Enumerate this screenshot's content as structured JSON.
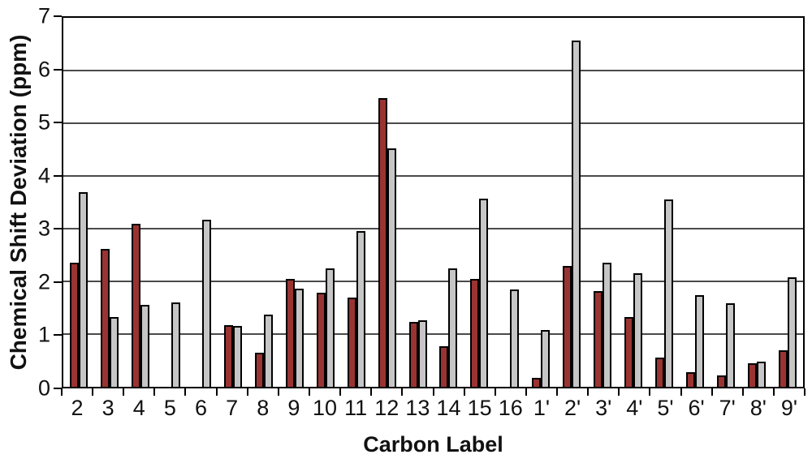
{
  "chart_data": {
    "type": "bar",
    "title": "",
    "xlabel": "Carbon Label",
    "ylabel": "Chemical Shift Deviation (ppm)",
    "ylim": [
      0,
      7
    ],
    "yticks": [
      0,
      1,
      2,
      3,
      4,
      5,
      6,
      7
    ],
    "grid": "horizontal",
    "legend_position": "none",
    "plot_border_color": "#000000",
    "gridline_color": "#4a4a4a",
    "background_color": "#ffffff",
    "categories": [
      "2",
      "3",
      "4",
      "5",
      "6",
      "7",
      "8",
      "9",
      "10",
      "11",
      "12",
      "13",
      "14",
      "15",
      "16",
      "1'",
      "2'",
      "3'",
      "4'",
      "5'",
      "6'",
      "7'",
      "8'",
      "9'"
    ],
    "series": [
      {
        "name": "dark-red",
        "color": "#993432",
        "values": [
          2.35,
          2.62,
          3.1,
          0,
          0,
          1.17,
          0.65,
          2.05,
          1.79,
          1.7,
          5.48,
          1.23,
          0.77,
          2.05,
          0,
          0.17,
          2.3,
          1.82,
          1.33,
          0.56,
          0.27,
          0.22,
          0.44,
          0.7
        ]
      },
      {
        "name": "light-gray",
        "color": "#c6c6c6",
        "values": [
          3.7,
          1.33,
          1.55,
          1.6,
          3.17,
          1.15,
          1.37,
          1.86,
          2.25,
          2.96,
          4.52,
          1.26,
          2.25,
          3.57,
          1.84,
          1.08,
          6.57,
          2.36,
          2.16,
          3.55,
          1.74,
          1.58,
          0.47,
          2.08
        ]
      }
    ]
  }
}
